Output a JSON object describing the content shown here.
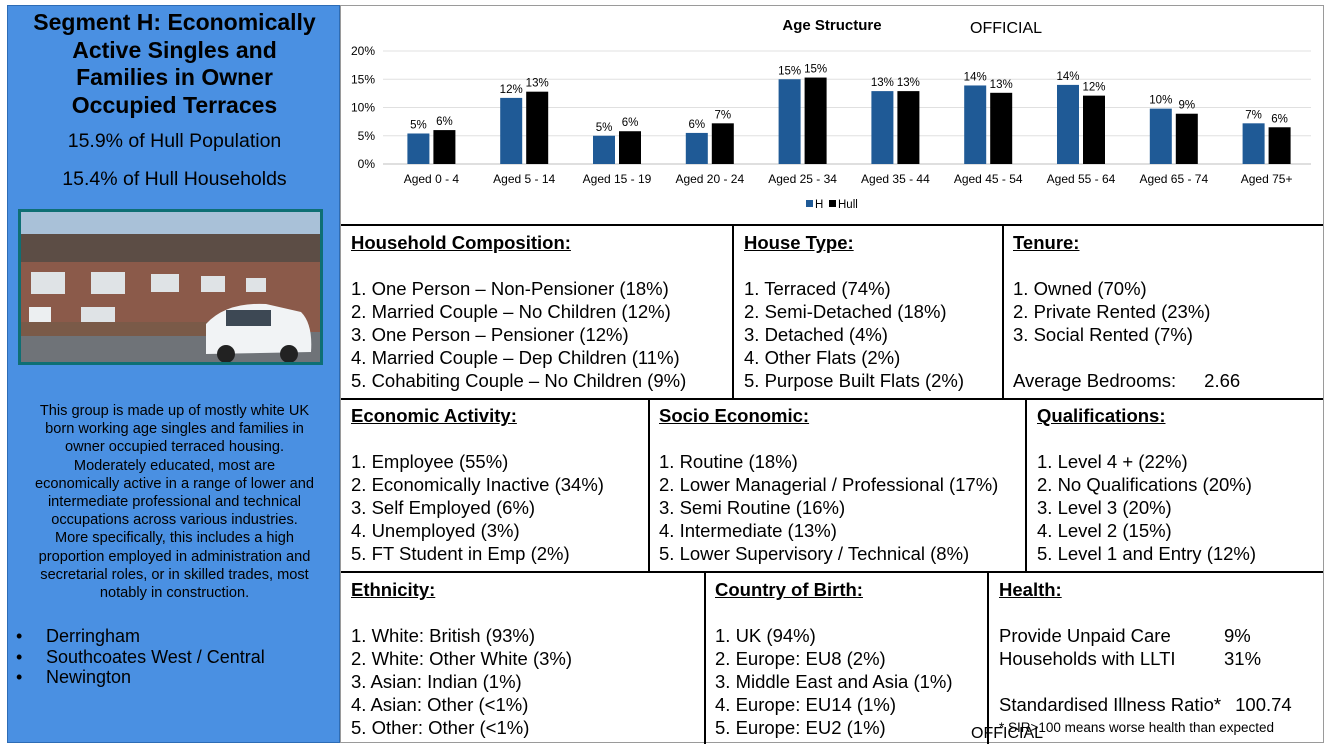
{
  "segment": {
    "title_lines": [
      "Segment H: Economically",
      "Active Singles and",
      "Families in Owner",
      "Occupied Terraces"
    ],
    "population": "15.9% of Hull Population",
    "households": "15.4% of Hull Households",
    "description_lines": [
      "This group is made up of mostly white UK",
      "born working age singles and families in",
      "owner occupied terraced housing.",
      "Moderately educated, most are",
      "economically active in a range of lower and",
      "intermediate professional and technical",
      "occupations across various industries.",
      "More specifically, this includes a high",
      "proportion employed in administration and",
      "secretarial roles, or in skilled trades, most",
      "notably in construction."
    ],
    "areas": [
      "Derringham",
      "Southcoates West / Central",
      "Newington"
    ]
  },
  "official_label": "OFFICIAL",
  "chart_data": {
    "type": "bar",
    "title": "Age Structure",
    "categories": [
      "Aged 0 - 4",
      "Aged 5 - 14",
      "Aged 15 - 19",
      "Aged 20 - 24",
      "Aged 25 - 34",
      "Aged 35 - 44",
      "Aged 45 - 54",
      "Aged 55 - 64",
      "Aged 65 - 74",
      "Aged 75+"
    ],
    "series": [
      {
        "name": "H",
        "color": "#1f5a96",
        "values": [
          5.4,
          11.7,
          5.0,
          5.5,
          15.0,
          12.9,
          13.9,
          14.0,
          9.8,
          7.2
        ],
        "labels": [
          "5%",
          "12%",
          "5%",
          "6%",
          "15%",
          "13%",
          "14%",
          "14%",
          "10%",
          "7%"
        ]
      },
      {
        "name": "Hull",
        "color": "#000000",
        "values": [
          6.0,
          12.8,
          5.8,
          7.2,
          15.3,
          12.9,
          12.6,
          12.1,
          8.9,
          6.5
        ],
        "labels": [
          "6%",
          "13%",
          "6%",
          "7%",
          "15%",
          "13%",
          "13%",
          "12%",
          "9%",
          "6%"
        ]
      }
    ],
    "yticks": [
      "0%",
      "5%",
      "10%",
      "15%",
      "20%"
    ],
    "ylim": [
      0,
      20
    ],
    "legend_position": "bottom",
    "grid": true
  },
  "panels": {
    "household_composition": {
      "title": "Household Composition:",
      "items": [
        "1. One Person – Non-Pensioner (18%)",
        "2. Married Couple – No Children (12%)",
        "3. One Person – Pensioner (12%)",
        "4. Married Couple – Dep Children (11%)",
        "5. Cohabiting Couple – No Children (9%)"
      ]
    },
    "house_type": {
      "title": "House Type:",
      "items": [
        "1. Terraced (74%)",
        "2. Semi-Detached (18%)",
        "3. Detached (4%)",
        "4. Other Flats (2%)",
        "5. Purpose Built Flats (2%)"
      ]
    },
    "tenure": {
      "title": "Tenure:",
      "items": [
        "1. Owned (70%)",
        "2. Private Rented (23%)",
        "3. Social Rented (7%)"
      ],
      "bedrooms_label": "Average Bedrooms:",
      "bedrooms_value": "2.66"
    },
    "economic_activity": {
      "title": "Economic Activity:",
      "items": [
        "1. Employee (55%)",
        "2. Economically Inactive (34%)",
        "3. Self Employed (6%)",
        "4. Unemployed (3%)",
        "5. FT Student in Emp (2%)"
      ]
    },
    "socio_economic": {
      "title": "Socio Economic:",
      "items": [
        "1. Routine (18%)",
        "2. Lower Managerial / Professional (17%)",
        "3. Semi Routine (16%)",
        "4. Intermediate (13%)",
        "5. Lower Supervisory / Technical (8%)"
      ]
    },
    "qualifications": {
      "title": "Qualifications:",
      "items": [
        "1. Level 4 + (22%)",
        "2. No Qualifications (20%)",
        "3. Level 3 (20%)",
        "4. Level 2 (15%)",
        "5. Level 1 and Entry (12%)"
      ]
    },
    "ethnicity": {
      "title": "Ethnicity:",
      "items": [
        "1. White: British (93%)",
        "2. White: Other White (3%)",
        "3. Asian: Indian (1%)",
        "4. Asian: Other (<1%)",
        "5. Other: Other (<1%)"
      ]
    },
    "country_of_birth": {
      "title": "Country of Birth:",
      "items": [
        "1. UK (94%)",
        "2. Europe: EU8 (2%)",
        "3. Middle East and Asia (1%)",
        "4. Europe: EU14 (1%)",
        "5. Europe: EU2 (1%)"
      ]
    },
    "health": {
      "title": "Health:",
      "unpaid_care_label": "Provide Unpaid Care",
      "unpaid_care_value": "9%",
      "llti_label": "Households with LLTI",
      "llti_value": "31%",
      "sir_label": "Standardised Illness Ratio*",
      "sir_value": "100.74",
      "footnote": "* SIR>100 means worse health than expected"
    }
  }
}
